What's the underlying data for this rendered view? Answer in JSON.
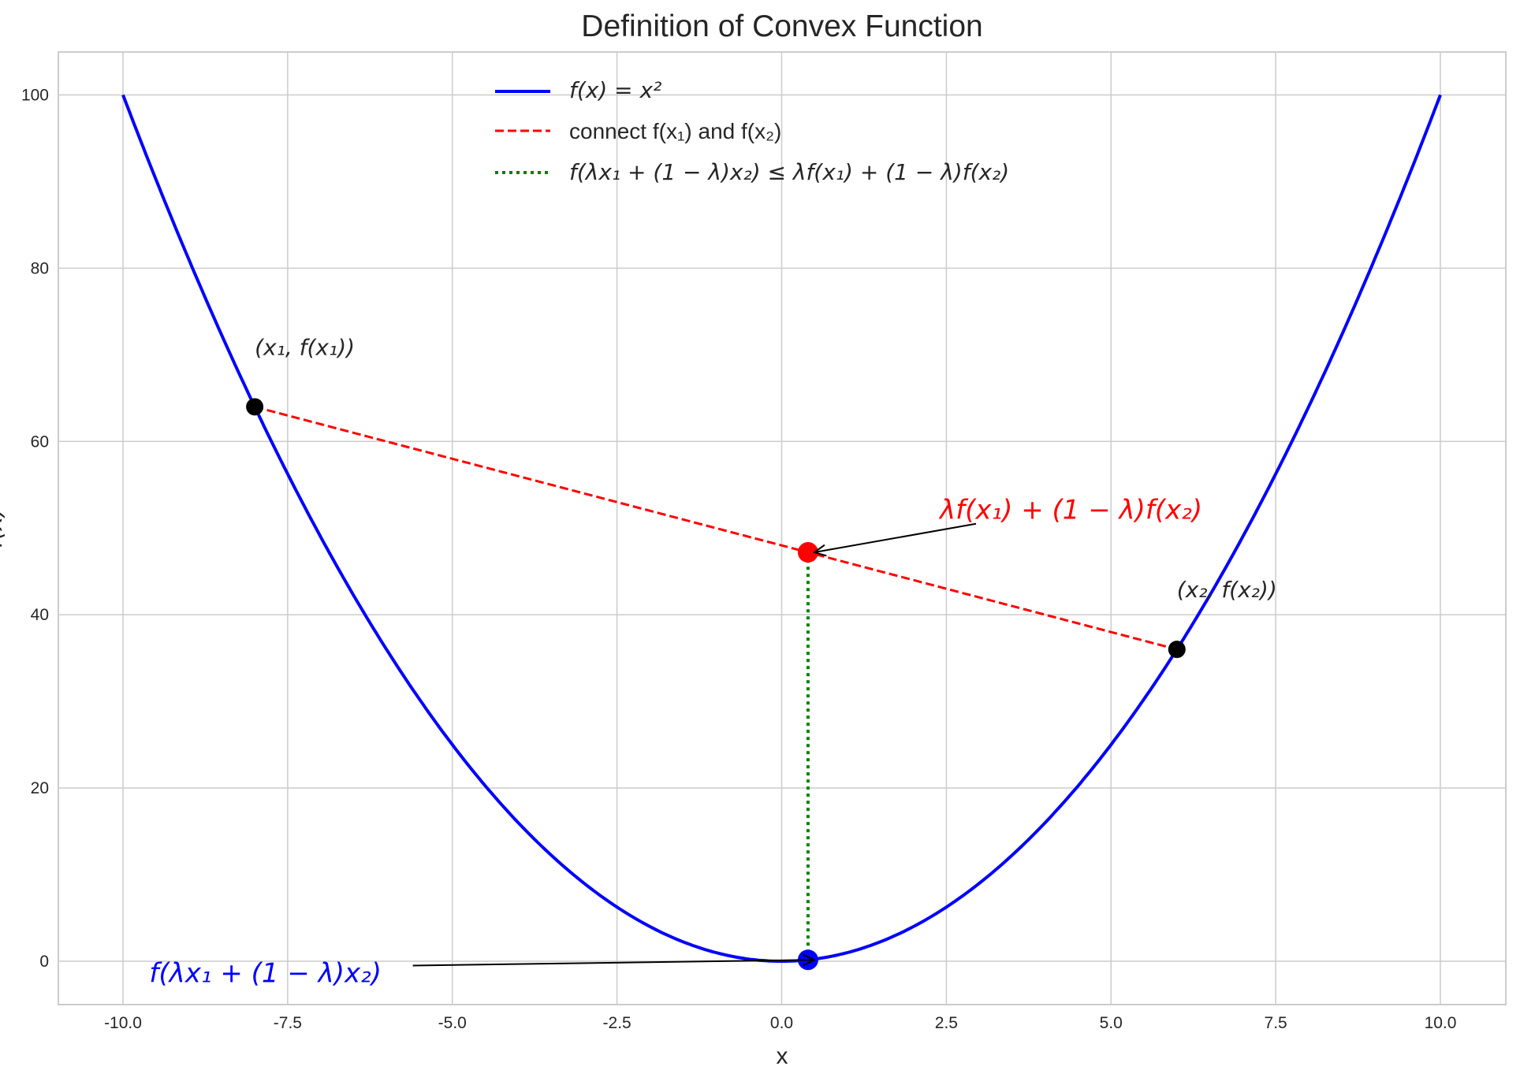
{
  "chart_data": {
    "type": "line",
    "title": "Definition of Convex Function",
    "xlabel": "x",
    "ylabel": "f(x)",
    "xlim": [
      -11,
      11
    ],
    "ylim": [
      -5,
      105
    ],
    "grid": true,
    "xticks": [
      "-10.0",
      "-7.5",
      "-5.0",
      "-2.5",
      "0.0",
      "2.5",
      "5.0",
      "7.5",
      "10.0"
    ],
    "xtick_values": [
      -10,
      -7.5,
      -5,
      -2.5,
      0,
      2.5,
      5,
      7.5,
      10
    ],
    "yticks": [
      "0",
      "20",
      "40",
      "60",
      "80",
      "100"
    ],
    "ytick_values": [
      0,
      20,
      40,
      60,
      80,
      100
    ],
    "legend_position": "top-center",
    "series": [
      {
        "name": "f(x) = x²",
        "kind": "curve",
        "function": "x^2",
        "x_range": [
          -10,
          10
        ],
        "color": "#0000ff",
        "style": "solid"
      },
      {
        "name": "connect f(x₁) and f(x₂)",
        "kind": "segment",
        "x": [
          -8,
          6
        ],
        "y": [
          64,
          36
        ],
        "color": "#ff0000",
        "style": "dashed"
      },
      {
        "name": "f(λx₁ + (1 − λ)x₂) ≤ λf(x₁) + (1 − λ)f(x₂)",
        "kind": "segment",
        "x": [
          0.4,
          0.4
        ],
        "y": [
          0.16,
          47.2
        ],
        "color": "#008000",
        "style": "dotted"
      }
    ],
    "points": [
      {
        "x": -8,
        "y": 64,
        "color": "#000000"
      },
      {
        "x": 6,
        "y": 36,
        "color": "#000000"
      },
      {
        "x": 0.4,
        "y": 47.2,
        "color": "#ff0000"
      },
      {
        "x": 0.4,
        "y": 0.16,
        "color": "#0000ff"
      }
    ],
    "annotations": [
      {
        "text": "(x₁, f(x₁))",
        "at": [
          -8,
          70
        ],
        "color": "#262626"
      },
      {
        "text": "(x₂, f(x₂))",
        "at": [
          6,
          42
        ],
        "color": "#262626"
      },
      {
        "text": "λf(x₁) + (1 − λ)f(x₂)",
        "at": [
          2.4,
          52
        ],
        "color": "#ff0000",
        "arrow_from": [
          2.95,
          50.5
        ],
        "arrow_to": [
          0.4,
          47.2
        ]
      },
      {
        "text": "f(λx₁ + (1 − λ)x₂)",
        "at": [
          -9.6,
          -1.5
        ],
        "color": "#0000ff",
        "arrow_from": [
          -5.6,
          -0.5
        ],
        "arrow_to": [
          0.4,
          0.16
        ]
      }
    ]
  }
}
